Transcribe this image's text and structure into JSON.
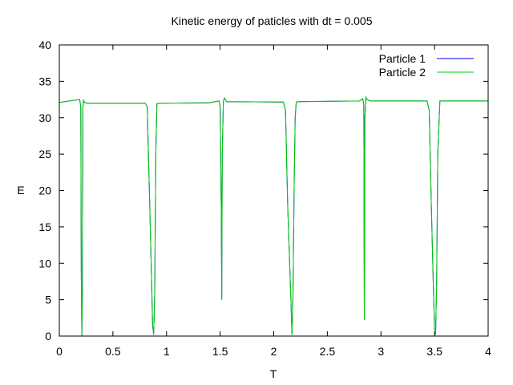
{
  "chart_data": {
    "type": "line",
    "title": "Kinetic energy of paticles with dt = 0.005",
    "xlabel": "T",
    "ylabel": "E",
    "xlim": [
      0,
      4
    ],
    "ylim": [
      0,
      40
    ],
    "grid": false,
    "legend_position": "top-right",
    "xticks": [
      "0",
      "0.5",
      "1",
      "1.5",
      "2",
      "2.5",
      "3",
      "3.5",
      "4"
    ],
    "yticks": [
      "0",
      "5",
      "10",
      "15",
      "20",
      "25",
      "30",
      "35",
      "40"
    ],
    "series": [
      {
        "name": "Particle 1",
        "color": "#0000ff",
        "x": [
          0,
          0.19,
          0.2,
          0.205,
          0.21,
          0.215,
          0.22,
          0.225,
          0.235,
          0.26,
          0.8,
          0.82,
          0.84,
          0.86,
          0.87,
          0.88,
          0.89,
          0.9,
          0.91,
          0.93,
          1.4,
          1.49,
          1.5,
          1.51,
          1.515,
          1.52,
          1.53,
          1.54,
          1.56,
          2.09,
          2.11,
          2.13,
          2.16,
          2.17,
          2.18,
          2.19,
          2.2,
          2.21,
          2.23,
          2.8,
          2.83,
          2.84,
          2.845,
          2.85,
          2.86,
          2.87,
          2.9,
          3.43,
          3.45,
          3.47,
          3.49,
          3.5,
          3.51,
          3.52,
          3.53,
          3.55,
          4
        ],
        "y": [
          32.1,
          32.5,
          31.5,
          8,
          0,
          6,
          31.5,
          32.4,
          32.1,
          32,
          32,
          31.5,
          20,
          8,
          1.5,
          0.2,
          6,
          25,
          31.9,
          32,
          32.05,
          32.3,
          31.6,
          18,
          5,
          25,
          32.2,
          32.7,
          32.2,
          32.15,
          31,
          18,
          5,
          0.2,
          6,
          20,
          30,
          32.15,
          32.2,
          32.3,
          32.6,
          31.8,
          2.2,
          30,
          32.8,
          32.5,
          32.3,
          32.3,
          31,
          18,
          6,
          1,
          0.2,
          8,
          25,
          32.3,
          32.3
        ]
      },
      {
        "name": "Particle 2",
        "color": "#00cc00",
        "x": [
          0,
          0.19,
          0.2,
          0.205,
          0.21,
          0.215,
          0.22,
          0.225,
          0.235,
          0.26,
          0.8,
          0.82,
          0.84,
          0.86,
          0.87,
          0.88,
          0.89,
          0.9,
          0.91,
          0.93,
          1.4,
          1.49,
          1.5,
          1.51,
          1.515,
          1.52,
          1.53,
          1.54,
          1.56,
          2.09,
          2.11,
          2.13,
          2.16,
          2.17,
          2.18,
          2.19,
          2.2,
          2.21,
          2.23,
          2.8,
          2.83,
          2.84,
          2.845,
          2.85,
          2.86,
          2.87,
          2.9,
          3.43,
          3.45,
          3.47,
          3.49,
          3.5,
          3.51,
          3.52,
          3.53,
          3.55,
          4
        ],
        "y": [
          32.1,
          32.5,
          31.5,
          8,
          0,
          6,
          31.5,
          32.4,
          32.1,
          32,
          32,
          31.5,
          20,
          8,
          1.5,
          0.2,
          6,
          25,
          31.9,
          32,
          32.05,
          32.3,
          31.6,
          18,
          5,
          25,
          32.2,
          32.7,
          32.2,
          32.15,
          31,
          18,
          5,
          0.2,
          6,
          20,
          30,
          32.15,
          32.2,
          32.3,
          32.6,
          31.8,
          2.2,
          30,
          32.8,
          32.5,
          32.3,
          32.3,
          31,
          18,
          6,
          1,
          0.2,
          8,
          25,
          32.3,
          32.3
        ]
      }
    ]
  }
}
